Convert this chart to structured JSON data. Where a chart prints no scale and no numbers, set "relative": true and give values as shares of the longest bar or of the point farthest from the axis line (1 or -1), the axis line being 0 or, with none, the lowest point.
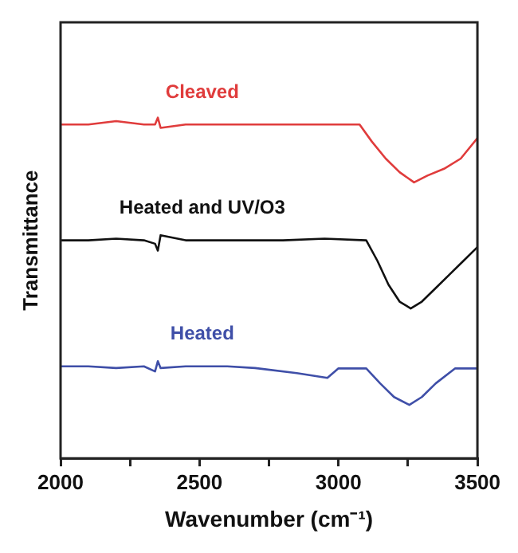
{
  "chart_data": {
    "type": "line",
    "xlabel": "Wavenumber (cm⁻¹)",
    "ylabel": "Transmittance",
    "relative": true,
    "xlim": [
      2000,
      3500
    ],
    "xticks": [
      2000,
      {
        "value": 2250,
        "label": null
      },
      2500,
      {
        "value": 2750,
        "label": null
      },
      3000,
      {
        "value": 3250,
        "label": null
      },
      3500
    ],
    "grid": false,
    "legend": false,
    "marker": "none",
    "line_style": "solid",
    "series": [
      {
        "name": "Cleaved",
        "color": "#e03c3c",
        "x": [
          2000,
          2100,
          2200,
          2300,
          2340,
          2350,
          2360,
          2450,
          2600,
          2800,
          2950,
          3076,
          3120,
          3170,
          3220,
          3272,
          3320,
          3380,
          3440,
          3500
        ],
        "values": [
          0.98,
          0.98,
          0.99,
          0.98,
          0.98,
          1.0,
          0.97,
          0.98,
          0.98,
          0.98,
          0.98,
          0.98,
          0.93,
          0.88,
          0.84,
          0.81,
          0.83,
          0.85,
          0.88,
          0.94
        ]
      },
      {
        "name": "Heated and UV/O3",
        "color": "#111111",
        "x": [
          2000,
          2100,
          2200,
          2300,
          2340,
          2350,
          2360,
          2450,
          2600,
          2800,
          2950,
          3100,
          3140,
          3180,
          3220,
          3260,
          3300,
          3350,
          3400,
          3450,
          3500
        ],
        "values": [
          0.64,
          0.64,
          0.645,
          0.64,
          0.63,
          0.61,
          0.655,
          0.64,
          0.64,
          0.64,
          0.645,
          0.64,
          0.58,
          0.51,
          0.46,
          0.44,
          0.46,
          0.5,
          0.54,
          0.58,
          0.62
        ]
      },
      {
        "name": "Heated",
        "color": "#3f4fa8",
        "x": [
          2000,
          2100,
          2200,
          2300,
          2340,
          2350,
          2360,
          2450,
          2600,
          2700,
          2850,
          2960,
          3000,
          3100,
          3150,
          3200,
          3255,
          3300,
          3350,
          3420,
          3500
        ],
        "values": [
          0.27,
          0.27,
          0.265,
          0.27,
          0.255,
          0.285,
          0.265,
          0.27,
          0.27,
          0.265,
          0.25,
          0.236,
          0.264,
          0.264,
          0.22,
          0.18,
          0.157,
          0.18,
          0.22,
          0.264,
          0.264
        ]
      }
    ]
  }
}
